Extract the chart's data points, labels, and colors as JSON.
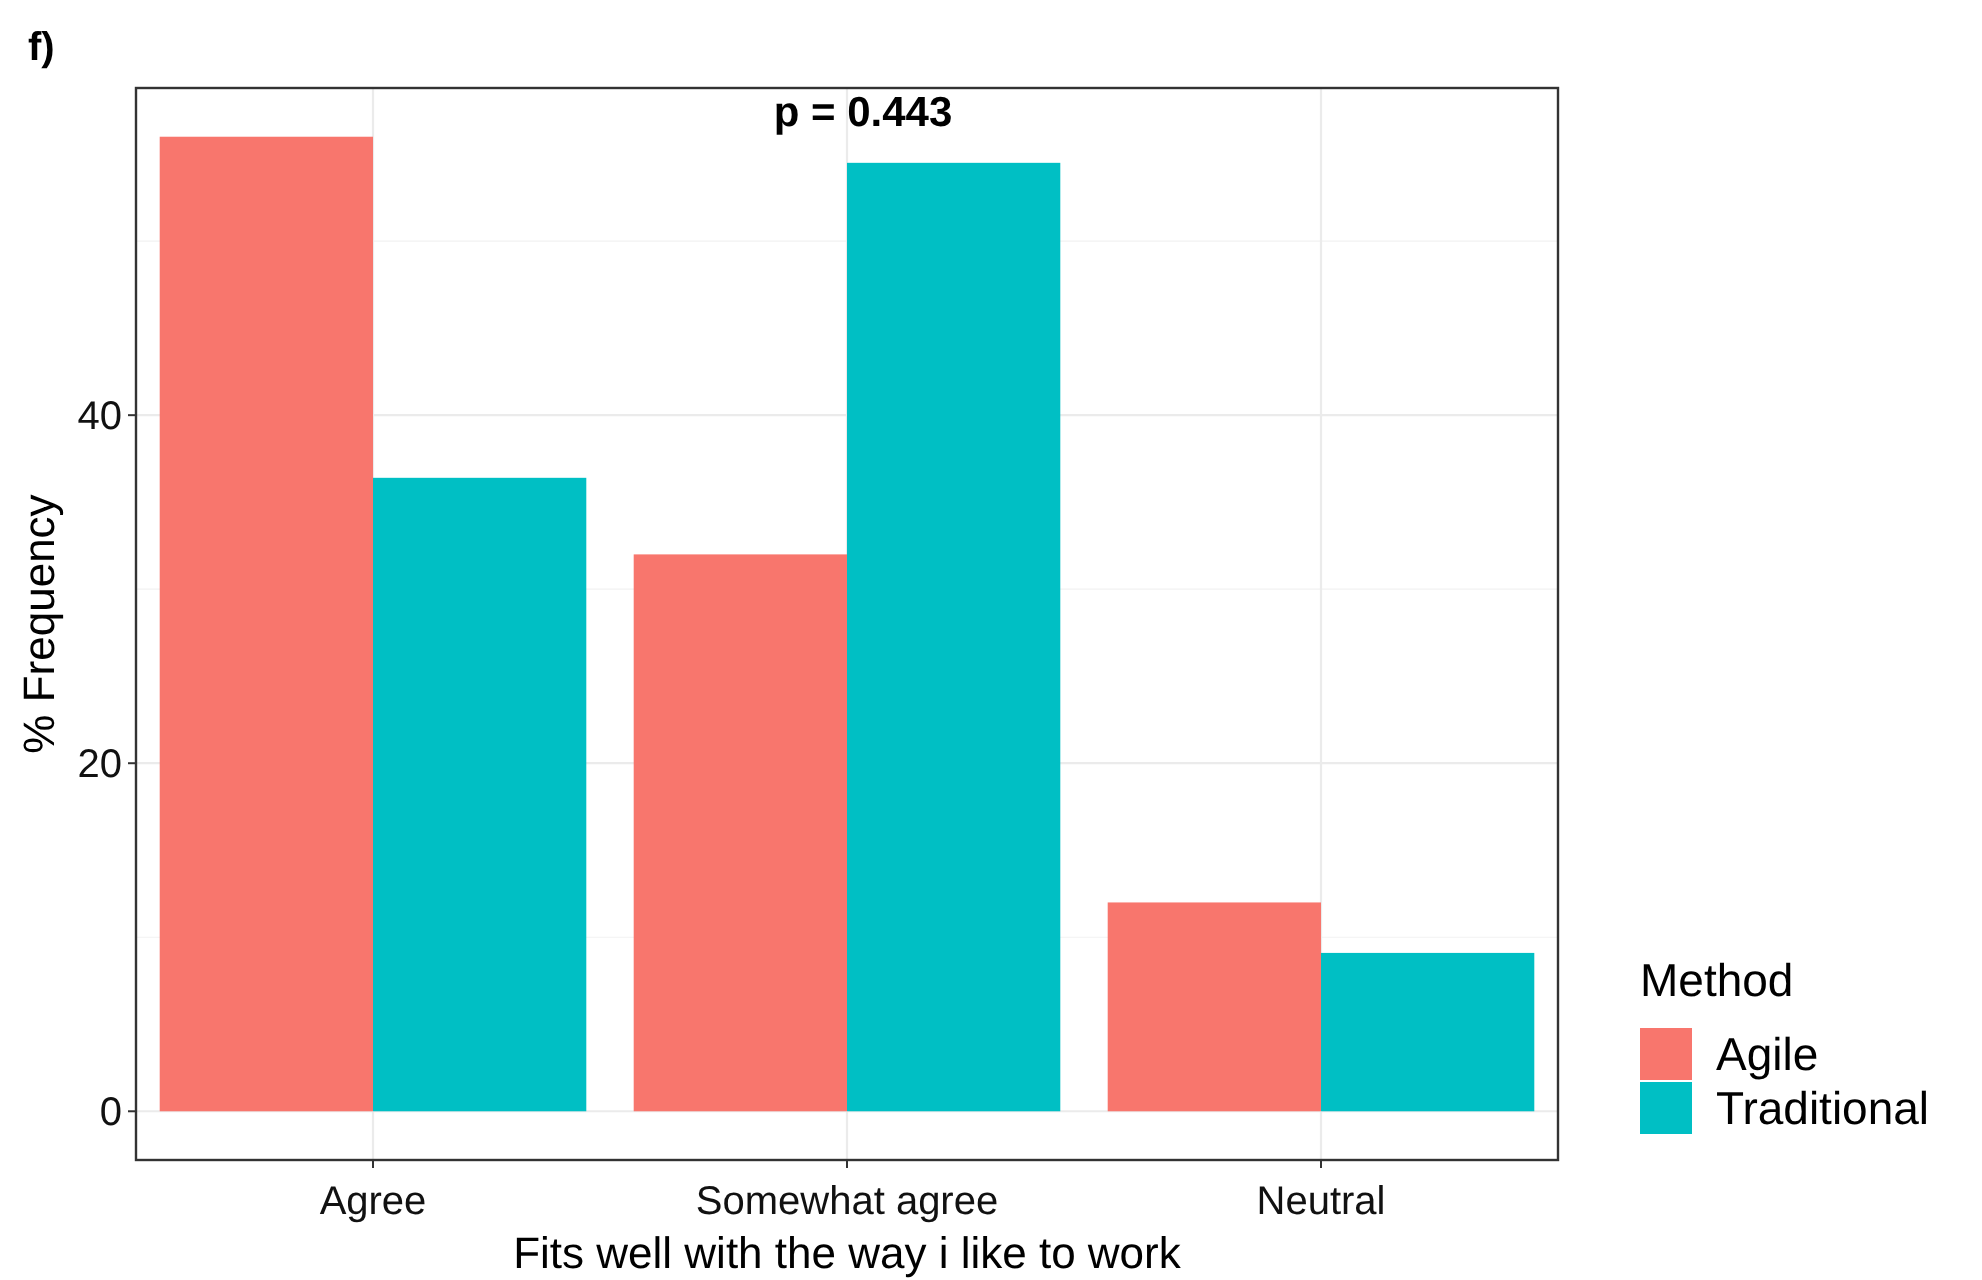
{
  "chart_data": {
    "type": "bar",
    "title": "f)",
    "xlabel": "Fits well with the way i like to work",
    "ylabel": "% Frequency",
    "legend_title": "Method",
    "categories": [
      "Agree",
      "Somewhat agree",
      "Neutral"
    ],
    "series": [
      {
        "name": "Agile",
        "color": "#f8766d",
        "values": [
          56,
          32,
          12
        ]
      },
      {
        "name": "Traditional",
        "color": "#00bfc4",
        "values": [
          36.4,
          54.5,
          9.1
        ]
      }
    ],
    "ylim": [
      -2.8,
      58.8
    ],
    "yticks": [
      0,
      {
        "value": 10,
        "label": null
      },
      20,
      {
        "value": 30,
        "label": null
      },
      40,
      {
        "value": 50,
        "label": null
      }
    ],
    "grid": true,
    "legend": "right",
    "annotations": [
      "p = 0.443"
    ]
  }
}
